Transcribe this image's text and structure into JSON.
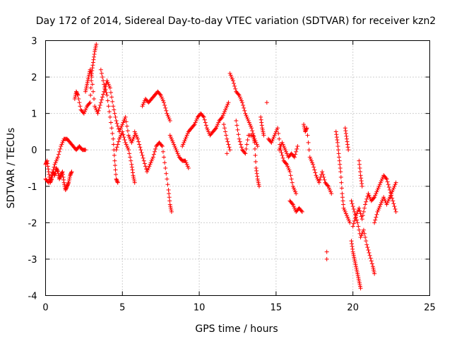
{
  "chart_data": {
    "type": "scatter",
    "title": "Day 172 of 2014, Sidereal Day-to-day VTEC variation (SDTVAR) for receiver kzn2",
    "xlabel": "GPS time / hours",
    "ylabel": "SDTVAR / TECUs",
    "xlim": [
      0,
      25
    ],
    "ylim": [
      -4,
      3
    ],
    "xticks": [
      0,
      5,
      10,
      15,
      20,
      25
    ],
    "yticks": [
      -4,
      -3,
      -2,
      -1,
      0,
      1,
      2,
      3
    ],
    "grid": true,
    "marker": "+",
    "color": "#ff0000",
    "series": [
      {
        "name": "SDTVAR",
        "points": [
          [
            0.0,
            -0.4
          ],
          [
            0.1,
            -0.3
          ],
          [
            0.2,
            -0.6
          ],
          [
            0.3,
            -0.9
          ],
          [
            0.4,
            -0.8
          ],
          [
            0.5,
            -0.6
          ],
          [
            0.6,
            -0.7
          ],
          [
            0.7,
            -0.5
          ],
          [
            0.8,
            -0.6
          ],
          [
            0.9,
            -0.8
          ],
          [
            1.0,
            -0.7
          ],
          [
            1.1,
            -0.6
          ],
          [
            1.2,
            -0.9
          ],
          [
            1.3,
            -1.1
          ],
          [
            1.4,
            -1.0
          ],
          [
            1.5,
            -0.9
          ],
          [
            1.6,
            -0.7
          ],
          [
            1.7,
            -0.6
          ],
          [
            0.0,
            -0.8
          ],
          [
            0.2,
            -0.9
          ],
          [
            0.4,
            -0.7
          ],
          [
            0.6,
            -0.4
          ],
          [
            0.8,
            -0.2
          ],
          [
            1.0,
            0.1
          ],
          [
            1.2,
            0.3
          ],
          [
            1.4,
            0.3
          ],
          [
            1.6,
            0.2
          ],
          [
            1.8,
            0.1
          ],
          [
            2.0,
            0.0
          ],
          [
            2.2,
            0.1
          ],
          [
            2.4,
            0.0
          ],
          [
            2.6,
            0.0
          ],
          [
            1.9,
            1.4
          ],
          [
            2.0,
            1.6
          ],
          [
            2.1,
            1.5
          ],
          [
            2.3,
            1.1
          ],
          [
            2.5,
            1.0
          ],
          [
            2.7,
            1.2
          ],
          [
            2.9,
            1.3
          ],
          [
            3.0,
            2.1
          ],
          [
            3.1,
            2.4
          ],
          [
            3.2,
            2.7
          ],
          [
            3.3,
            2.9
          ],
          [
            2.6,
            1.6
          ],
          [
            2.7,
            1.8
          ],
          [
            2.8,
            2.0
          ],
          [
            2.9,
            2.2
          ],
          [
            3.0,
            2.0
          ],
          [
            3.2,
            1.2
          ],
          [
            3.4,
            1.0
          ],
          [
            3.6,
            1.3
          ],
          [
            3.8,
            1.6
          ],
          [
            4.0,
            1.9
          ],
          [
            4.2,
            1.7
          ],
          [
            4.4,
            1.2
          ],
          [
            4.6,
            0.8
          ],
          [
            4.8,
            0.5
          ],
          [
            5.0,
            0.7
          ],
          [
            5.2,
            0.9
          ],
          [
            5.4,
            0.4
          ],
          [
            5.6,
            0.2
          ],
          [
            5.8,
            0.4
          ],
          [
            3.6,
            2.2
          ],
          [
            3.8,
            1.8
          ],
          [
            4.0,
            1.5
          ],
          [
            4.2,
            0.9
          ],
          [
            4.4,
            0.3
          ],
          [
            4.5,
            -0.3
          ],
          [
            4.6,
            -0.8
          ],
          [
            4.7,
            -0.9
          ],
          [
            4.6,
            0.0
          ],
          [
            4.8,
            0.3
          ],
          [
            5.0,
            0.5
          ],
          [
            5.2,
            0.2
          ],
          [
            5.4,
            0.0
          ],
          [
            5.6,
            -0.4
          ],
          [
            5.7,
            -0.7
          ],
          [
            5.8,
            -0.9
          ],
          [
            5.8,
            0.5
          ],
          [
            6.0,
            0.3
          ],
          [
            6.2,
            0.0
          ],
          [
            6.4,
            -0.3
          ],
          [
            6.6,
            -0.6
          ],
          [
            6.8,
            -0.4
          ],
          [
            7.0,
            -0.2
          ],
          [
            7.2,
            0.1
          ],
          [
            7.4,
            0.2
          ],
          [
            7.6,
            0.1
          ],
          [
            7.8,
            -0.5
          ],
          [
            8.0,
            -1.1
          ],
          [
            8.1,
            -1.5
          ],
          [
            8.2,
            -1.7
          ],
          [
            6.3,
            1.2
          ],
          [
            6.5,
            1.4
          ],
          [
            6.7,
            1.3
          ],
          [
            6.9,
            1.4
          ],
          [
            7.1,
            1.5
          ],
          [
            7.3,
            1.6
          ],
          [
            7.5,
            1.5
          ],
          [
            7.7,
            1.3
          ],
          [
            7.9,
            1.0
          ],
          [
            8.1,
            0.8
          ],
          [
            8.1,
            0.4
          ],
          [
            8.3,
            0.2
          ],
          [
            8.5,
            0.0
          ],
          [
            8.7,
            -0.2
          ],
          [
            8.9,
            -0.3
          ],
          [
            9.1,
            -0.3
          ],
          [
            9.3,
            -0.5
          ],
          [
            8.9,
            0.1
          ],
          [
            9.1,
            0.3
          ],
          [
            9.3,
            0.5
          ],
          [
            9.5,
            0.6
          ],
          [
            9.7,
            0.7
          ],
          [
            9.9,
            0.9
          ],
          [
            10.1,
            1.0
          ],
          [
            10.3,
            0.9
          ],
          [
            10.5,
            0.6
          ],
          [
            10.7,
            0.4
          ],
          [
            10.9,
            0.5
          ],
          [
            11.1,
            0.6
          ],
          [
            11.3,
            0.8
          ],
          [
            11.5,
            0.9
          ],
          [
            11.7,
            1.1
          ],
          [
            11.9,
            1.3
          ],
          [
            11.6,
            0.7
          ],
          [
            11.8,
            0.3
          ],
          [
            12.0,
            0.0
          ],
          [
            11.8,
            -0.1
          ],
          [
            12.0,
            2.1
          ],
          [
            12.2,
            1.9
          ],
          [
            12.4,
            1.6
          ],
          [
            12.6,
            1.5
          ],
          [
            12.8,
            1.3
          ],
          [
            13.0,
            1.0
          ],
          [
            13.2,
            0.8
          ],
          [
            13.4,
            0.6
          ],
          [
            13.6,
            0.3
          ],
          [
            13.8,
            0.1
          ],
          [
            12.4,
            0.8
          ],
          [
            12.6,
            0.3
          ],
          [
            12.8,
            0.0
          ],
          [
            13.0,
            -0.1
          ],
          [
            13.2,
            0.4
          ],
          [
            13.5,
            0.4
          ],
          [
            13.6,
            0.2
          ],
          [
            13.7,
            -0.5
          ],
          [
            13.8,
            -0.8
          ],
          [
            13.9,
            -1.0
          ],
          [
            14.0,
            0.9
          ],
          [
            14.1,
            0.6
          ],
          [
            14.2,
            0.4
          ],
          [
            14.4,
            1.3
          ],
          [
            14.5,
            0.3
          ],
          [
            14.7,
            0.2
          ],
          [
            14.9,
            0.4
          ],
          [
            15.1,
            0.6
          ],
          [
            15.3,
            0.0
          ],
          [
            15.5,
            -0.3
          ],
          [
            15.7,
            -0.4
          ],
          [
            15.9,
            -0.6
          ],
          [
            16.1,
            -1.0
          ],
          [
            16.3,
            -1.2
          ],
          [
            15.2,
            0.0
          ],
          [
            15.4,
            0.2
          ],
          [
            15.6,
            0.0
          ],
          [
            15.8,
            -0.2
          ],
          [
            16.0,
            -0.1
          ],
          [
            16.2,
            -0.2
          ],
          [
            16.4,
            0.1
          ],
          [
            15.9,
            -1.4
          ],
          [
            16.1,
            -1.5
          ],
          [
            16.3,
            -1.7
          ],
          [
            16.5,
            -1.6
          ],
          [
            16.7,
            -1.7
          ],
          [
            16.8,
            0.7
          ],
          [
            16.9,
            0.5
          ],
          [
            17.0,
            0.6
          ],
          [
            17.2,
            -0.2
          ],
          [
            17.4,
            -0.4
          ],
          [
            17.6,
            -0.7
          ],
          [
            17.8,
            -0.9
          ],
          [
            18.0,
            -0.6
          ],
          [
            18.2,
            -0.9
          ],
          [
            18.4,
            -1.0
          ],
          [
            18.6,
            -1.2
          ],
          [
            18.3,
            -2.8
          ],
          [
            18.3,
            -3.0
          ],
          [
            18.9,
            0.5
          ],
          [
            19.0,
            0.2
          ],
          [
            19.1,
            -0.2
          ],
          [
            19.2,
            -0.6
          ],
          [
            19.3,
            -1.2
          ],
          [
            19.4,
            -1.6
          ],
          [
            19.6,
            -1.8
          ],
          [
            19.8,
            -2.0
          ],
          [
            19.5,
            0.6
          ],
          [
            19.6,
            0.3
          ],
          [
            19.7,
            0.0
          ],
          [
            19.9,
            -2.5
          ],
          [
            20.0,
            -2.8
          ],
          [
            20.1,
            -3.0
          ],
          [
            20.2,
            -3.2
          ],
          [
            20.3,
            -3.4
          ],
          [
            20.4,
            -3.6
          ],
          [
            20.5,
            -3.8
          ],
          [
            19.9,
            -1.4
          ],
          [
            20.1,
            -1.7
          ],
          [
            20.3,
            -2.0
          ],
          [
            20.5,
            -2.4
          ],
          [
            20.7,
            -2.2
          ],
          [
            20.9,
            -2.6
          ],
          [
            21.1,
            -2.9
          ],
          [
            21.3,
            -3.2
          ],
          [
            21.4,
            -3.4
          ],
          [
            20.0,
            -2.1
          ],
          [
            20.2,
            -1.8
          ],
          [
            20.4,
            -1.6
          ],
          [
            20.6,
            -1.9
          ],
          [
            20.8,
            -1.5
          ],
          [
            21.0,
            -1.2
          ],
          [
            21.2,
            -1.4
          ],
          [
            21.4,
            -1.3
          ],
          [
            21.6,
            -1.1
          ],
          [
            21.8,
            -0.9
          ],
          [
            22.0,
            -0.7
          ],
          [
            22.2,
            -0.8
          ],
          [
            22.4,
            -1.1
          ],
          [
            22.6,
            -1.4
          ],
          [
            22.8,
            -1.7
          ],
          [
            20.4,
            -0.3
          ],
          [
            20.5,
            -0.7
          ],
          [
            20.6,
            -1.0
          ],
          [
            21.4,
            -2.0
          ],
          [
            21.6,
            -1.7
          ],
          [
            21.8,
            -1.5
          ],
          [
            22.0,
            -1.3
          ],
          [
            22.2,
            -1.5
          ],
          [
            22.4,
            -1.3
          ],
          [
            22.6,
            -1.1
          ],
          [
            22.8,
            -0.9
          ]
        ]
      }
    ]
  }
}
